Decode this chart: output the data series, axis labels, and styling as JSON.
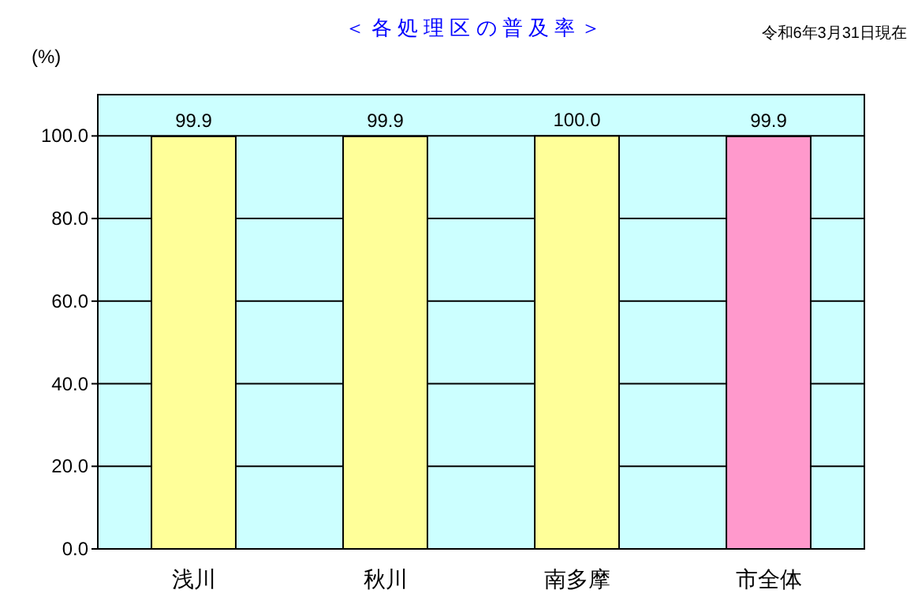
{
  "chart_data": {
    "type": "bar",
    "title": "＜ 各 処 理 区 の 普 及 率 ＞",
    "annotations": [
      "令和6年3月31日現在"
    ],
    "ylabel": "(%)",
    "categories": [
      "浅川",
      "秋川",
      "南多摩",
      "市全体"
    ],
    "values": [
      99.9,
      99.9,
      100.0,
      99.9
    ],
    "value_labels": [
      "99.9",
      "99.9",
      "100.0",
      "99.9"
    ],
    "colors": [
      "#ffff99",
      "#ffff99",
      "#ffff99",
      "#ff99cc"
    ],
    "ylim": [
      0,
      110
    ],
    "yticks": [
      {
        "value": 0,
        "label": "0.0"
      },
      {
        "value": 20,
        "label": "20.0"
      },
      {
        "value": 40,
        "label": "40.0"
      },
      {
        "value": 60,
        "label": "60.0"
      },
      {
        "value": 80,
        "label": "80.0"
      },
      {
        "value": 100,
        "label": "100.0"
      }
    ],
    "grid": "y"
  }
}
